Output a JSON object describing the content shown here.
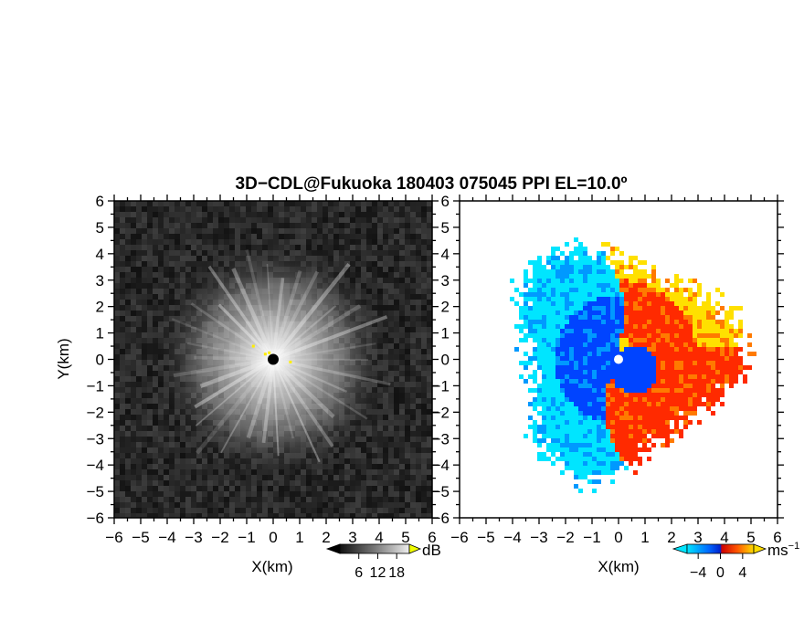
{
  "title": "3D−CDL@Fukuoka 180403 075045 PPI EL=10.0º",
  "chart_data": [
    {
      "type": "heatmap",
      "panel": "reflectivity",
      "xlabel": "X(km)",
      "ylabel": "Y(km)",
      "xlim": [
        -6,
        6
      ],
      "ylim": [
        -6,
        6
      ],
      "xticks": [
        "−6",
        "−5",
        "−4",
        "−3",
        "−2",
        "−1",
        "0",
        "1",
        "2",
        "3",
        "4",
        "5",
        "6"
      ],
      "yticks": [
        "6",
        "5",
        "4",
        "3",
        "2",
        "1",
        "0",
        "−1",
        "−2",
        "−3",
        "−4",
        "−5",
        "−6"
      ],
      "colormap": "grayscale",
      "colorbar": {
        "unit": "dB",
        "ticks": [
          "6",
          "12",
          "18"
        ],
        "range": [
          0,
          22
        ]
      }
    },
    {
      "type": "heatmap",
      "panel": "doppler-velocity",
      "xlabel": "X(km)",
      "xlim": [
        -6,
        6
      ],
      "ylim": [
        -6,
        6
      ],
      "xticks": [
        "−6",
        "−5",
        "−4",
        "−3",
        "−2",
        "−1",
        "0",
        "1",
        "2",
        "3",
        "4",
        "5",
        "6"
      ],
      "yticks": [
        "6",
        "5",
        "4",
        "3",
        "2",
        "1",
        "0",
        "−1",
        "−2",
        "−3",
        "−4",
        "−5",
        "−6"
      ],
      "colormap": "diverging-blue-red",
      "colors": {
        "neg_far": "#00e5ff",
        "neg": "#0044ff",
        "pos": "#ff2a00",
        "pos_far": "#ffe000"
      },
      "colorbar": {
        "unit": "ms",
        "unit_exp": "−1",
        "ticks": [
          "−4",
          "0",
          "4"
        ],
        "range": [
          -6,
          6
        ]
      }
    }
  ]
}
